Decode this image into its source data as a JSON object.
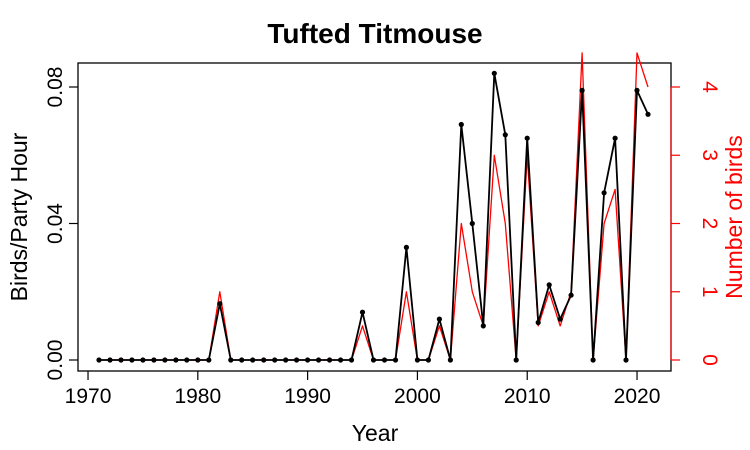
{
  "chart_data": {
    "type": "line",
    "title": "Tufted Titmouse",
    "xlabel": "Year",
    "ylabel": "Birds/Party Hour",
    "ylabel_right": "Number of birds",
    "xlim": [
      1971,
      2021
    ],
    "ylim": [
      0,
      0.08
    ],
    "ylim_right": [
      0,
      4
    ],
    "x_ticks": [
      1970,
      1980,
      1990,
      2000,
      2010,
      2020
    ],
    "x_tick_labels": [
      "1970",
      "1980",
      "1990",
      "2000",
      "2010",
      "2020"
    ],
    "y_ticks": [
      0,
      0.04,
      0.08
    ],
    "y_tick_labels": [
      "0.00",
      "0.04",
      "0.08"
    ],
    "y_right_ticks": [
      0,
      1,
      2,
      3,
      4
    ],
    "y_right_tick_labels": [
      "0",
      "1",
      "2",
      "3",
      "4"
    ],
    "x": [
      1971,
      1972,
      1973,
      1974,
      1975,
      1976,
      1977,
      1978,
      1979,
      1980,
      1981,
      1982,
      1983,
      1984,
      1985,
      1986,
      1987,
      1988,
      1989,
      1990,
      1991,
      1992,
      1993,
      1994,
      1995,
      1996,
      1997,
      1998,
      1999,
      2000,
      2001,
      2002,
      2003,
      2004,
      2005,
      2006,
      2007,
      2008,
      2009,
      2010,
      2011,
      2012,
      2013,
      2014,
      2015,
      2016,
      2017,
      2018,
      2019,
      2020,
      2021
    ],
    "series": [
      {
        "axis": "left",
        "color": "#000000",
        "markers": true,
        "values": [
          0,
          0,
          0,
          0,
          0,
          0,
          0,
          0,
          0,
          0,
          0,
          0.0165,
          0,
          0,
          0,
          0,
          0,
          0,
          0,
          0,
          0,
          0,
          0,
          0,
          0.014,
          0,
          0,
          0,
          0.033,
          0,
          0,
          0.012,
          0,
          0.069,
          0.04,
          0.01,
          0.084,
          0.066,
          0,
          0.065,
          0.011,
          0.022,
          0.012,
          0.019,
          0.079,
          0,
          0.049,
          0.065,
          0,
          0.079,
          0.072
        ]
      },
      {
        "axis": "right",
        "color": "#ff0000",
        "markers": false,
        "values": [
          0,
          0,
          0,
          0,
          0,
          0,
          0,
          0,
          0,
          0,
          0,
          1,
          0,
          0,
          0,
          0,
          0,
          0,
          0,
          0,
          0,
          0,
          0,
          0,
          0.5,
          0,
          0,
          0,
          1,
          0,
          0,
          0.5,
          0,
          2,
          1,
          0.5,
          3,
          2,
          0,
          3,
          0.5,
          1,
          0.5,
          1,
          4.5,
          0,
          2,
          2.5,
          0,
          4.5,
          4
        ]
      }
    ],
    "grid": false
  }
}
